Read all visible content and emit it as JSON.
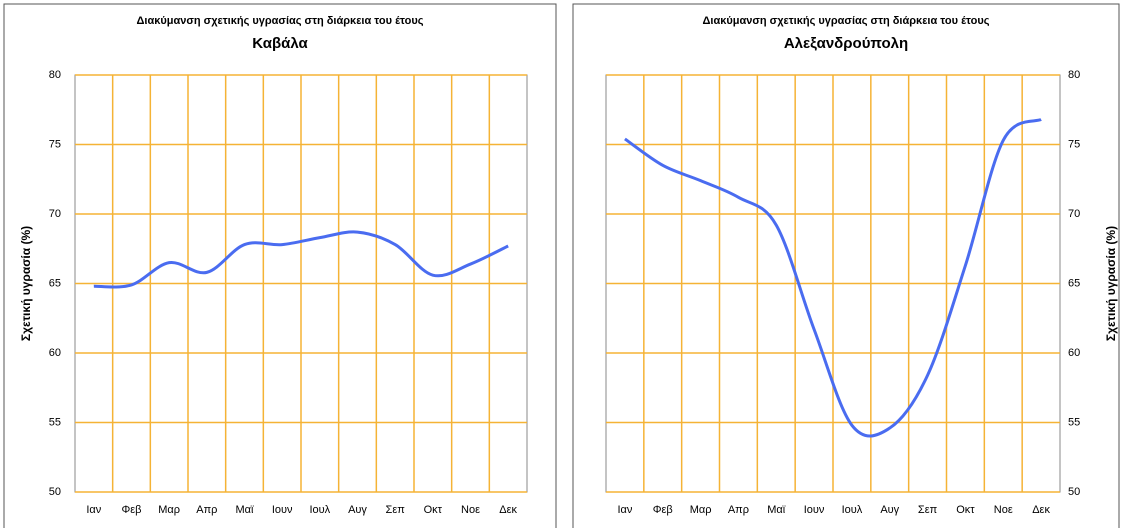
{
  "chart_data": [
    {
      "type": "line",
      "title": "Διακύμανση σχετικής υγρασίας στη διάρκεια του έτους",
      "subtitle": "Καβάλα",
      "y_label": "Σχετική υγρασία (%)",
      "yaxis_side": "left",
      "grid": true,
      "grid_color": "#f5b335",
      "categories": [
        "Ιαν",
        "Φεβ",
        "Μαρ",
        "Απρ",
        "Μαϊ",
        "Ιουν",
        "Ιουλ",
        "Αυγ",
        "Σεπ",
        "Οκτ",
        "Νοε",
        "Δεκ"
      ],
      "series": [
        {
          "color": "#4a6cf0",
          "values": [
            64.8,
            64.9,
            66.5,
            65.8,
            67.8,
            67.8,
            68.3,
            68.7,
            67.8,
            65.6,
            66.4,
            67.7
          ]
        }
      ],
      "ylim": [
        50,
        80
      ],
      "yticks": [
        50,
        55,
        60,
        65,
        70,
        75,
        80
      ]
    },
    {
      "type": "line",
      "title": "Διακύμανση σχετικής υγρασίας στη διάρκεια του έτους",
      "subtitle": "Αλεξανδρούπολη",
      "y_label": "Σχετική υγρασία (%)",
      "yaxis_side": "right",
      "grid": true,
      "grid_color": "#f5b335",
      "categories": [
        "Ιαν",
        "Φεβ",
        "Μαρ",
        "Απρ",
        "Μαϊ",
        "Ιουν",
        "Ιουλ",
        "Αυγ",
        "Σεπ",
        "Οκτ",
        "Νοε",
        "Δεκ"
      ],
      "series": [
        {
          "color": "#4a6cf0",
          "values": [
            75.4,
            73.5,
            72.4,
            71.2,
            69.2,
            61.7,
            54.8,
            54.6,
            58.4,
            66.3,
            75.3,
            76.8
          ]
        }
      ],
      "ylim": [
        50,
        80
      ],
      "yticks": [
        50,
        55,
        60,
        65,
        70,
        75,
        80
      ]
    }
  ]
}
